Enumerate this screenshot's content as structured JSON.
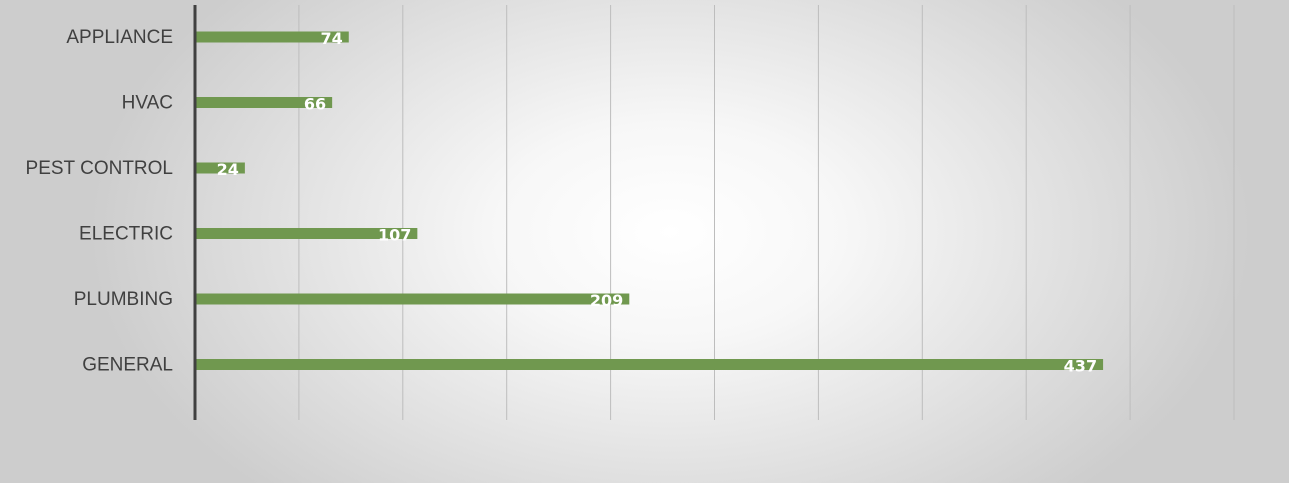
{
  "chart_data": {
    "type": "bar",
    "orientation": "horizontal",
    "categories": [
      "APPLIANCE",
      "HVAC",
      "PEST CONTROL",
      "ELECTRIC",
      "PLUMBING",
      "GENERAL"
    ],
    "values": [
      74,
      66,
      24,
      107,
      209,
      437
    ],
    "value_labels": [
      "74",
      "66",
      "24",
      "107",
      "209",
      "437"
    ],
    "xlim": [
      0,
      500
    ],
    "x_gridline_step": 50,
    "grid": true,
    "legend": "none",
    "bar_color": "#70984f",
    "axis_color": "#404040",
    "gridline_color": "#bdbdbd"
  }
}
